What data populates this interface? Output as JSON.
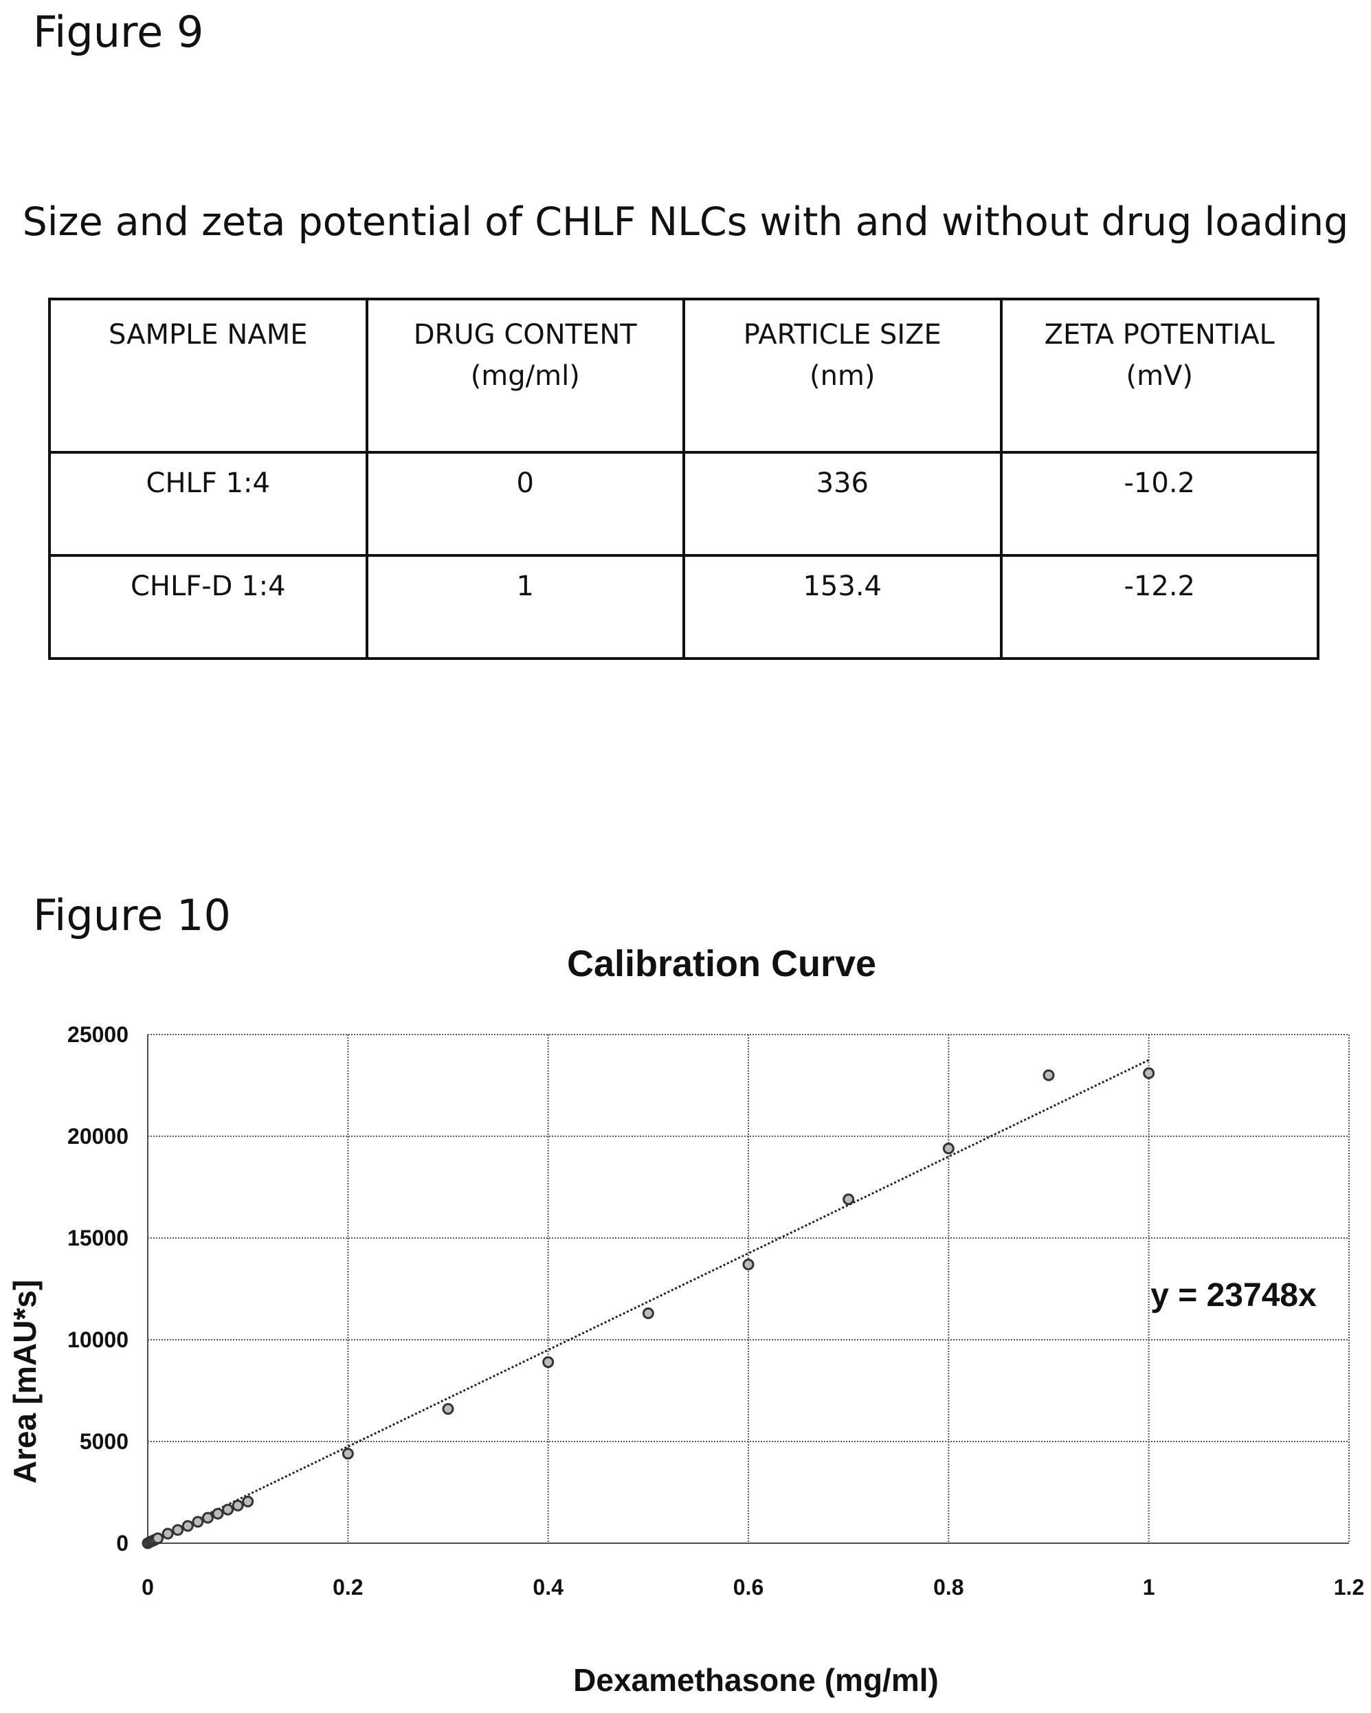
{
  "figure9": {
    "label": "Figure 9",
    "caption": "Size and zeta potential of CHLF NLCs with and without drug loading",
    "table": {
      "headers": [
        [
          "SAMPLE NAME"
        ],
        [
          "DRUG CONTENT",
          "(mg/ml)"
        ],
        [
          "PARTICLE SIZE",
          "(nm)"
        ],
        [
          "ZETA POTENTIAL",
          "(mV)"
        ]
      ],
      "rows": [
        [
          "CHLF 1:4",
          "0",
          "336",
          "-10.2"
        ],
        [
          "CHLF-D 1:4",
          "1",
          "153.4",
          "-12.2"
        ]
      ]
    }
  },
  "figure10": {
    "label": "Figure 10"
  },
  "chart_data": {
    "type": "scatter",
    "title": "Calibration Curve",
    "xlabel": "Dexamethasone (mg/ml)",
    "ylabel": "Area [mAU*s]",
    "xlim": [
      0,
      1.2
    ],
    "ylim": [
      0,
      25000
    ],
    "x_ticks": [
      "0",
      "0.2",
      "0.4",
      "0.6",
      "0.8",
      "1",
      "1.2"
    ],
    "y_ticks": [
      "0",
      "5000",
      "10000",
      "15000",
      "20000",
      "25000"
    ],
    "grid": true,
    "series": [
      {
        "points": [
          [
            0,
            0
          ],
          [
            0.002,
            50
          ],
          [
            0.004,
            100
          ],
          [
            0.006,
            140
          ],
          [
            0.008,
            190
          ],
          [
            0.01,
            240
          ],
          [
            0.02,
            470
          ],
          [
            0.03,
            650
          ],
          [
            0.04,
            850
          ],
          [
            0.05,
            1050
          ],
          [
            0.06,
            1250
          ],
          [
            0.07,
            1450
          ],
          [
            0.08,
            1650
          ],
          [
            0.09,
            1850
          ],
          [
            0.1,
            2050
          ],
          [
            0.2,
            4400
          ],
          [
            0.3,
            6600
          ],
          [
            0.4,
            8900
          ],
          [
            0.5,
            11300
          ],
          [
            0.6,
            13700
          ],
          [
            0.7,
            16900
          ],
          [
            0.8,
            19400
          ],
          [
            0.9,
            23000
          ],
          [
            1.0,
            23100
          ]
        ]
      }
    ],
    "trendline": {
      "slope": 23748,
      "intercept": 0,
      "x_range": [
        0,
        1.0
      ]
    },
    "annotation": "y = 23748x"
  }
}
